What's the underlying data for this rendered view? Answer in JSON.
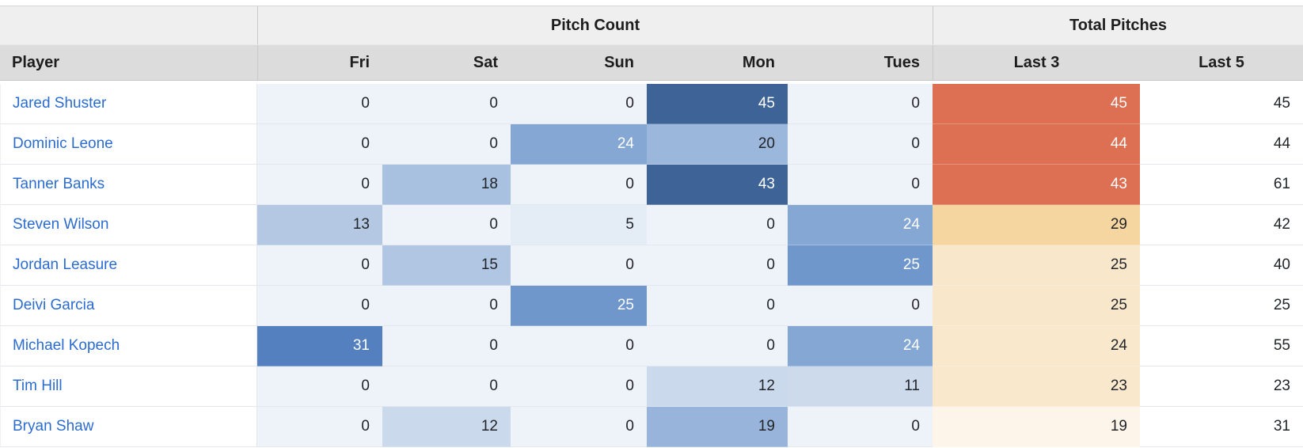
{
  "styles": {
    "link_color": "#2b6cd0",
    "group_header_bg": "#efefef",
    "column_header_bg": "#dcdcdc",
    "header_text_color": "#1d1d1d",
    "number_text_color": "#212529",
    "pitch_scale_low": "#eef2f9",
    "pitch_scale_high": "#3e6396",
    "total_scale_low": "#fdf5e9",
    "total_scale_high": "#dd6f52"
  },
  "chart_data": {
    "type": "table",
    "group_headers": [
      {
        "label": "",
        "span": 1
      },
      {
        "label": "Pitch Count",
        "span": 5
      },
      {
        "label": "Total Pitches",
        "span": 2
      }
    ],
    "columns": [
      "Player",
      "Fri",
      "Sat",
      "Sun",
      "Mon",
      "Tues",
      "Last 3",
      "Last 5"
    ],
    "rows": [
      {
        "player": "Jared Shuster",
        "days": [
          {
            "v": "0",
            "bg": "#eef2f9",
            "fg": "dark"
          },
          {
            "v": "0",
            "bg": "#eef2f9",
            "fg": "dark"
          },
          {
            "v": "0",
            "bg": "#eef2f9",
            "fg": "dark"
          },
          {
            "v": "45",
            "bg": "#3e6396",
            "fg": "light"
          },
          {
            "v": "0",
            "bg": "#eef2f9",
            "fg": "dark"
          }
        ],
        "last3": {
          "v": "45",
          "bg": "#dd6f52",
          "fg": "light"
        },
        "last5": "45"
      },
      {
        "player": "Dominic Leone",
        "days": [
          {
            "v": "0",
            "bg": "#eef2f9",
            "fg": "dark"
          },
          {
            "v": "0",
            "bg": "#eef2f9",
            "fg": "dark"
          },
          {
            "v": "24",
            "bg": "#85a7d3",
            "fg": "light"
          },
          {
            "v": "20",
            "bg": "#9cb7dc",
            "fg": "dark"
          },
          {
            "v": "0",
            "bg": "#eef2f9",
            "fg": "dark"
          }
        ],
        "last3": {
          "v": "44",
          "bg": "#dd6f52",
          "fg": "light"
        },
        "last5": "44"
      },
      {
        "player": "Tanner Banks",
        "days": [
          {
            "v": "0",
            "bg": "#eef2f9",
            "fg": "dark"
          },
          {
            "v": "18",
            "bg": "#a9c1e0",
            "fg": "dark"
          },
          {
            "v": "0",
            "bg": "#eef2f9",
            "fg": "dark"
          },
          {
            "v": "43",
            "bg": "#3e6396",
            "fg": "light"
          },
          {
            "v": "0",
            "bg": "#eef2f9",
            "fg": "dark"
          }
        ],
        "last3": {
          "v": "43",
          "bg": "#dd6f52",
          "fg": "light"
        },
        "last5": "61"
      },
      {
        "player": "Steven Wilson",
        "days": [
          {
            "v": "13",
            "bg": "#b4c8e3",
            "fg": "dark"
          },
          {
            "v": "0",
            "bg": "#eef2f9",
            "fg": "dark"
          },
          {
            "v": "5",
            "bg": "#e4ecf6",
            "fg": "dark"
          },
          {
            "v": "0",
            "bg": "#eef2f9",
            "fg": "dark"
          },
          {
            "v": "24",
            "bg": "#85a7d3",
            "fg": "light"
          }
        ],
        "last3": {
          "v": "29",
          "bg": "#f5d5a0",
          "fg": "dark"
        },
        "last5": "42"
      },
      {
        "player": "Jordan Leasure",
        "days": [
          {
            "v": "0",
            "bg": "#eef2f9",
            "fg": "dark"
          },
          {
            "v": "15",
            "bg": "#b1c6e2",
            "fg": "dark"
          },
          {
            "v": "0",
            "bg": "#eef2f9",
            "fg": "dark"
          },
          {
            "v": "0",
            "bg": "#eef2f9",
            "fg": "dark"
          },
          {
            "v": "25",
            "bg": "#6f97cb",
            "fg": "light"
          }
        ],
        "last3": {
          "v": "25",
          "bg": "#f9e7cb",
          "fg": "dark"
        },
        "last5": "40"
      },
      {
        "player": "Deivi Garcia",
        "days": [
          {
            "v": "0",
            "bg": "#eef2f9",
            "fg": "dark"
          },
          {
            "v": "0",
            "bg": "#eef2f9",
            "fg": "dark"
          },
          {
            "v": "25",
            "bg": "#6f97cb",
            "fg": "light"
          },
          {
            "v": "0",
            "bg": "#eef2f9",
            "fg": "dark"
          },
          {
            "v": "0",
            "bg": "#eef2f9",
            "fg": "dark"
          }
        ],
        "last3": {
          "v": "25",
          "bg": "#f9e7cb",
          "fg": "dark"
        },
        "last5": "25"
      },
      {
        "player": "Michael Kopech",
        "days": [
          {
            "v": "31",
            "bg": "#5580c0",
            "fg": "light"
          },
          {
            "v": "0",
            "bg": "#eef2f9",
            "fg": "dark"
          },
          {
            "v": "0",
            "bg": "#eef2f9",
            "fg": "dark"
          },
          {
            "v": "0",
            "bg": "#eef2f9",
            "fg": "dark"
          },
          {
            "v": "24",
            "bg": "#85a7d3",
            "fg": "light"
          }
        ],
        "last3": {
          "v": "24",
          "bg": "#f9e8cc",
          "fg": "dark"
        },
        "last5": "55"
      },
      {
        "player": "Tim Hill",
        "days": [
          {
            "v": "0",
            "bg": "#eef2f9",
            "fg": "dark"
          },
          {
            "v": "0",
            "bg": "#eef2f9",
            "fg": "dark"
          },
          {
            "v": "0",
            "bg": "#eef2f9",
            "fg": "dark"
          },
          {
            "v": "12",
            "bg": "#cbd9ec",
            "fg": "dark"
          },
          {
            "v": "11",
            "bg": "#cddaec",
            "fg": "dark"
          }
        ],
        "last3": {
          "v": "23",
          "bg": "#f9e8cc",
          "fg": "dark"
        },
        "last5": "23"
      },
      {
        "player": "Bryan Shaw",
        "days": [
          {
            "v": "0",
            "bg": "#eef2f9",
            "fg": "dark"
          },
          {
            "v": "12",
            "bg": "#cbd9ec",
            "fg": "dark"
          },
          {
            "v": "0",
            "bg": "#eef2f9",
            "fg": "dark"
          },
          {
            "v": "19",
            "bg": "#98b4da",
            "fg": "dark"
          },
          {
            "v": "0",
            "bg": "#eef2f9",
            "fg": "dark"
          }
        ],
        "last3": {
          "v": "19",
          "bg": "#fdf5e9",
          "fg": "dark"
        },
        "last5": "31"
      }
    ]
  }
}
